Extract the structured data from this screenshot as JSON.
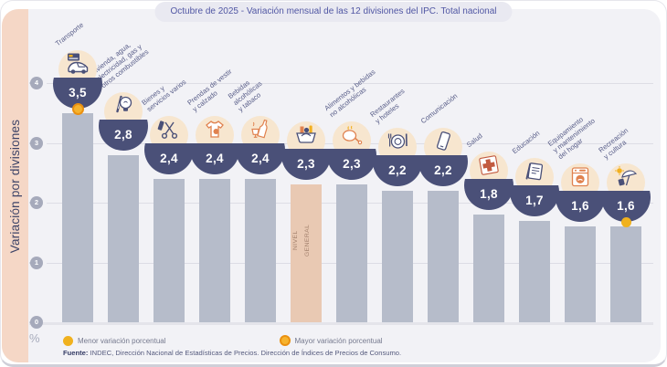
{
  "title": "Octubre de 2025 - Variación mensual de las 12 divisiones del IPC. Total nacional",
  "legend": {
    "min": {
      "label": "Menor variación porcentual",
      "color": "#f0b11e"
    },
    "max": {
      "label": "Mayor variación porcentual",
      "color": "#f6b32e",
      "ring_color": "#ea9010"
    }
  },
  "source": {
    "label": "Fuente:",
    "text": " INDEC, Dirección Nacional de Estadísticas de Precios. Dirección de Índices de Precios de Consumo."
  },
  "colors": {
    "bar": "#b6bcca",
    "highlight_bar": "#e9c9b3",
    "navy_bowl": "#4a5078",
    "panel_bg": "#f2f2f6",
    "side_strip": "#f5d7c6",
    "grid": "#dddde5",
    "tick": "#a6aabb",
    "min_marker": "#f0b11e",
    "max_marker": "#f6b32e"
  },
  "chart_data": {
    "type": "bar",
    "title": "Octubre de 2025 - Variación mensual de las 12 divisiones del IPC. Total nacional",
    "ylabel": "Variación por divisiones",
    "unit": "%",
    "ylim": [
      0,
      4
    ],
    "yticks": [
      4,
      3,
      2,
      1,
      0
    ],
    "grid": true,
    "legend_position": "bottom",
    "marker_max_category": "Transporte",
    "marker_min_category": "Recreación y cultura",
    "columns": [
      {
        "category": "Transporte",
        "value": 3.5,
        "display": "3,5",
        "icon": "transport-icon",
        "marker": "max"
      },
      {
        "category": "Vivienda, agua,\nelectricidad, gas y\notros combustibles",
        "value": 2.8,
        "display": "2,8",
        "icon": "housing-utilities-icon"
      },
      {
        "category": "Bienes y\nservicios varios",
        "value": 2.4,
        "display": "2,4",
        "icon": "goods-services-icon"
      },
      {
        "category": "Prendas de vestir\ny calzado",
        "value": 2.4,
        "display": "2,4",
        "icon": "clothing-icon"
      },
      {
        "category": "Bebidas\nalcohólicas\ny tabaco",
        "value": 2.4,
        "display": "2,4",
        "icon": "alcohol-tobacco-icon"
      },
      {
        "category": "NIVEL\nGENERAL",
        "value": 2.3,
        "display": "2,3",
        "icon": "general-level-basket-icon",
        "highlight": true,
        "label_inside": true
      },
      {
        "category": "Alimentos y bebidas\nno alcohólicas",
        "value": 2.3,
        "display": "2,3",
        "icon": "food-icon"
      },
      {
        "category": "Restaurantes\ny hoteles",
        "value": 2.2,
        "display": "2,2",
        "icon": "restaurants-icon"
      },
      {
        "category": "Comunicación",
        "value": 2.2,
        "display": "2,2",
        "icon": "communication-icon"
      },
      {
        "category": "Salud",
        "value": 1.8,
        "display": "1,8",
        "icon": "health-icon"
      },
      {
        "category": "Educación",
        "value": 1.7,
        "display": "1,7",
        "icon": "education-icon"
      },
      {
        "category": "Equipamiento\ny mantenimiento\ndel hogar",
        "value": 1.6,
        "display": "1,6",
        "icon": "home-equipment-icon"
      },
      {
        "category": "Recreación\ny cultura",
        "value": 1.6,
        "display": "1,6",
        "icon": "recreation-icon",
        "marker": "min"
      }
    ]
  }
}
